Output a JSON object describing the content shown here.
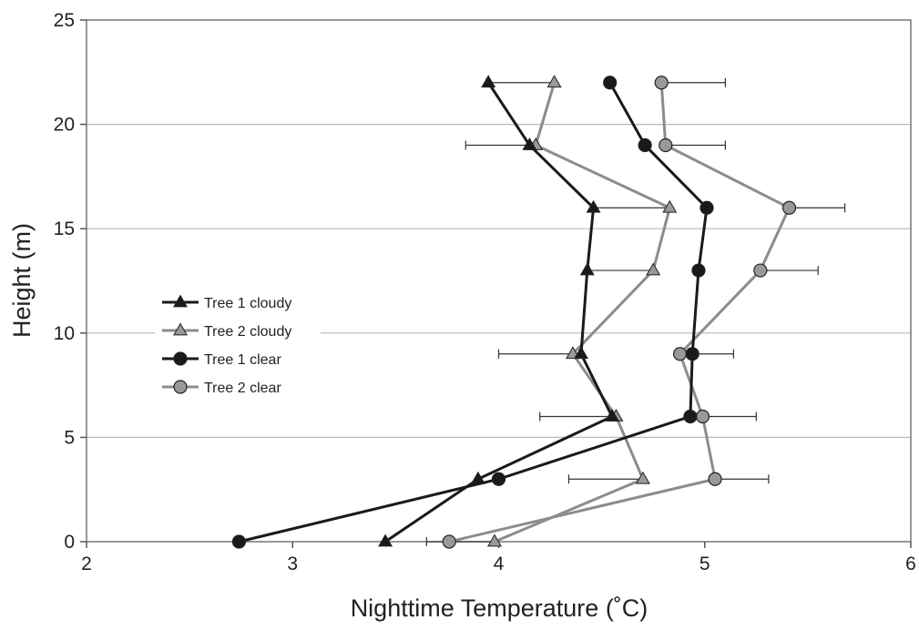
{
  "chart_data": {
    "type": "line",
    "title": "",
    "xlabel": "Nighttime Temperature (˚C)",
    "ylabel": "Height (m)",
    "xlim": [
      2,
      6
    ],
    "ylim": [
      0,
      25
    ],
    "xticks": [
      "2",
      "3",
      "4",
      "5",
      "6"
    ],
    "yticks": [
      "0",
      "5",
      "10",
      "15",
      "20",
      "25"
    ],
    "grid": "horizontal",
    "legend_position": "left",
    "series": [
      {
        "name": "Tree 1 cloudy",
        "color": "#1a1a1a",
        "marker": "triangle",
        "y": [
          0,
          3,
          6,
          9,
          13,
          16,
          19,
          22
        ],
        "x": [
          3.45,
          3.9,
          4.55,
          4.4,
          4.43,
          4.46,
          4.15,
          3.95
        ]
      },
      {
        "name": "Tree 2 cloudy",
        "color": "#999999",
        "marker": "triangle",
        "y": [
          0,
          3,
          6,
          9,
          13,
          16,
          19,
          22
        ],
        "x": [
          3.98,
          4.7,
          4.57,
          4.36,
          4.75,
          4.83,
          4.18,
          4.27
        ],
        "xerr_left": [
          0.33,
          0.36,
          0.37,
          0.36,
          0.31,
          0.37,
          0.34,
          0.33
        ]
      },
      {
        "name": "Tree 1 clear",
        "color": "#1a1a1a",
        "marker": "circle",
        "y": [
          0,
          3,
          6,
          9,
          13,
          16,
          19,
          22
        ],
        "x": [
          2.74,
          4.0,
          4.93,
          4.94,
          4.97,
          5.01,
          4.71,
          4.54
        ]
      },
      {
        "name": "Tree 2 clear",
        "color": "#999999",
        "marker": "circle",
        "y": [
          0,
          3,
          6,
          9,
          13,
          16,
          19,
          22
        ],
        "x": [
          3.76,
          5.05,
          4.99,
          4.88,
          5.27,
          5.41,
          4.81,
          4.79
        ],
        "xerr_right": [
          0,
          0.26,
          0.26,
          0.26,
          0.28,
          0.27,
          0.29,
          0.31
        ]
      }
    ]
  }
}
